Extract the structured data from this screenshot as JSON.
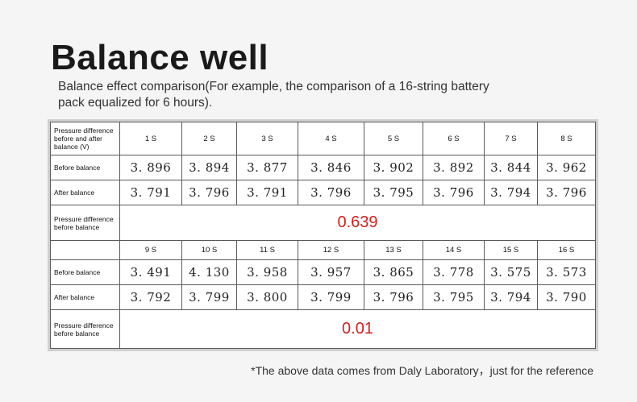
{
  "title": "Balance well",
  "subtitle": "Balance effect comparison(For example, the comparison of a 16-string battery pack equalized for 6 hours).",
  "table": {
    "header_label": "Pressure difference before and after balance (V)",
    "group1": {
      "cells": [
        "1 S",
        "2 S",
        "3 S",
        "4 S",
        "5 S",
        "6 S",
        "7 S",
        "8 S"
      ],
      "before_label": "Before balance",
      "before": [
        "3. 896",
        "3. 894",
        "3. 877",
        "3. 846",
        "3. 902",
        "3. 892",
        "3. 844",
        "3. 962"
      ],
      "after_label": "After balance",
      "after": [
        "3. 791",
        "3. 796",
        "3. 791",
        "3. 796",
        "3. 795",
        "3. 796",
        "3. 794",
        "3. 796"
      ],
      "diff_label": "Pressure difference before balance",
      "diff": "0.639"
    },
    "group2": {
      "cells": [
        "9 S",
        "10 S",
        "11 S",
        "12 S",
        "13 S",
        "14 S",
        "15 S",
        "16 S"
      ],
      "before_label": "Before balance",
      "before": [
        "3. 491",
        "4. 130",
        "3. 958",
        "3. 957",
        "3. 865",
        "3. 778",
        "3. 575",
        "3. 573"
      ],
      "after_label": "After balance",
      "after": [
        "3. 792",
        "3. 799",
        "3. 800",
        "3. 799",
        "3. 796",
        "3. 795",
        "3. 794",
        "3. 790"
      ],
      "diff_label": "Pressure difference before balance",
      "diff": "0.01"
    }
  },
  "footnote": "*The above data comes from Daly Laboratory，just for the reference",
  "colors": {
    "highlight": "#d81e1e",
    "border": "#5a5a5a",
    "background": "#f5f5f5"
  }
}
